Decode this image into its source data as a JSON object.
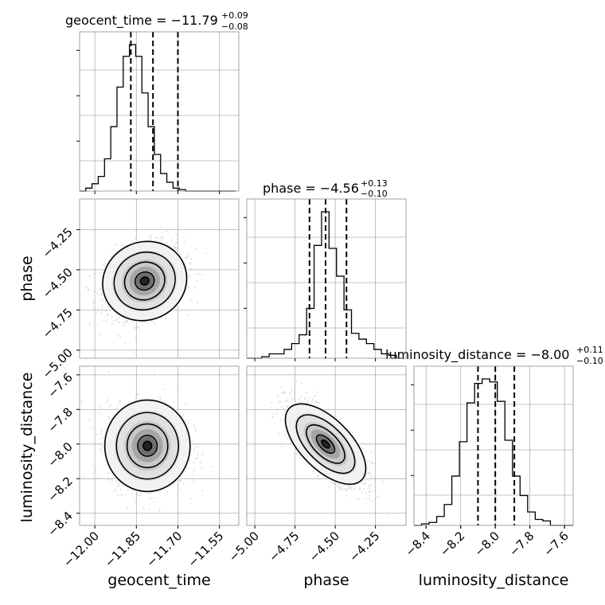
{
  "chart_data": {
    "type": "corner",
    "parameters": [
      {
        "name": "geocent_time",
        "median": -11.79,
        "plus": "+0.09",
        "minus": "−0.08",
        "median_label": "−11.79",
        "range": [
          -12.055,
          -11.48
        ],
        "ticks": [
          -12.0,
          -11.85,
          -11.7,
          -11.55
        ],
        "tick_labels": [
          "−12.00",
          "−11.85",
          "−11.70",
          "−11.55"
        ],
        "quantiles": [
          -11.87,
          -11.79,
          -11.7
        ]
      },
      {
        "name": "phase",
        "median": -4.56,
        "plus": "+0.13",
        "minus": "−0.10",
        "median_label": "−4.56",
        "range": [
          -5.05,
          -4.06
        ],
        "ticks": [
          -5.0,
          -4.75,
          -4.5,
          -4.25
        ],
        "tick_labels": [
          "−5.00",
          "−4.75",
          "−4.50",
          "−4.25"
        ],
        "quantiles": [
          -4.66,
          -4.56,
          -4.43
        ]
      },
      {
        "name": "luminosity_distance",
        "median": -8.0,
        "plus": "+0.11",
        "minus": "−0.10",
        "median_label": "−8.00",
        "range": [
          -8.47,
          -7.55
        ],
        "ticks": [
          -8.4,
          -8.2,
          -8.0,
          -7.8,
          -7.6
        ],
        "tick_labels": [
          "−8.4",
          "−8.2",
          "−8.0",
          "−7.8",
          "−7.6"
        ],
        "quantiles": [
          -8.1,
          -8.0,
          -7.89
        ]
      }
    ],
    "histograms": [
      {
        "param": "geocent_time",
        "bin_edges_start": -12.055,
        "bin_width": 0.0225,
        "counts": [
          0,
          2,
          5,
          10,
          22,
          44,
          71,
          92,
          100,
          92,
          67,
          44,
          25,
          12,
          6,
          2,
          1,
          0,
          0,
          0,
          0,
          0,
          0,
          0,
          0
        ]
      },
      {
        "param": "phase",
        "bin_edges_start": -5.05,
        "bin_width": 0.0465,
        "counts": [
          0,
          0,
          1,
          3,
          3,
          6,
          10,
          16,
          34,
          77,
          100,
          75,
          56,
          33,
          17,
          13,
          10,
          6,
          3,
          2,
          0
        ]
      },
      {
        "param": "luminosity_distance",
        "bin_edges_start": -8.47,
        "bin_width": 0.0438,
        "counts": [
          0,
          1,
          2,
          6,
          14,
          33,
          56,
          82,
          95,
          98,
          96,
          83,
          57,
          33,
          20,
          9,
          4,
          3,
          0,
          0,
          0
        ]
      }
    ],
    "pairs": [
      {
        "x": "geocent_time",
        "y": "phase",
        "center": [
          -11.82,
          -4.57
        ],
        "sigma": [
          0.07,
          0.11
        ],
        "rho": 0.25
      },
      {
        "x": "geocent_time",
        "y": "luminosity_distance",
        "center": [
          -11.81,
          -8.01
        ],
        "sigma": [
          0.07,
          0.12
        ],
        "rho": 0.0
      },
      {
        "x": "phase",
        "y": "luminosity_distance",
        "center": [
          -4.56,
          -8.0
        ],
        "sigma": [
          0.12,
          0.12
        ],
        "rho": -0.75
      }
    ],
    "grid": true
  }
}
